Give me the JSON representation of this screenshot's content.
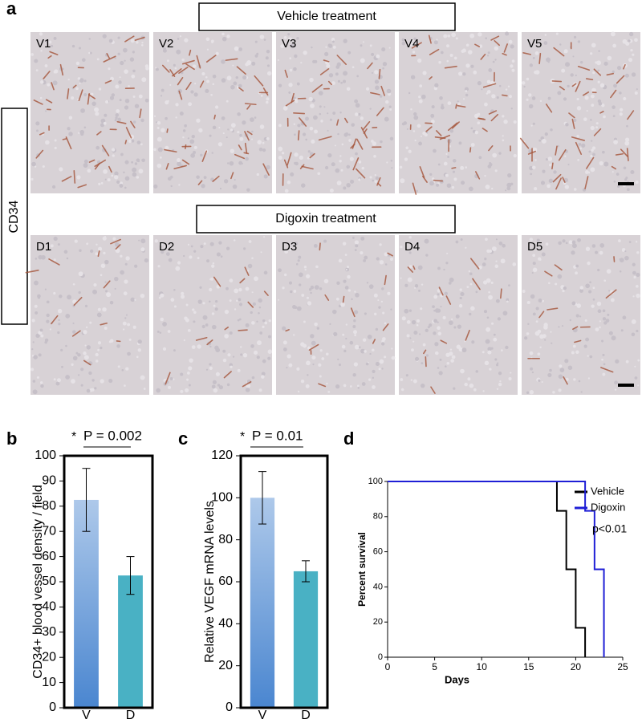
{
  "panel_a": {
    "label": "a",
    "vehicle_title": "Vehicle treatment",
    "digoxin_title": "Digoxin treatment",
    "stain": "CD34",
    "vehicle_images": [
      "V1",
      "V2",
      "V3",
      "V4",
      "V5"
    ],
    "digoxin_images": [
      "D1",
      "D2",
      "D3",
      "D4",
      "D5"
    ]
  },
  "chart_data": [
    {
      "type": "bar",
      "label": "b",
      "ylabel": "CD34+ blood vessel density / field",
      "annotation": "*",
      "p_value": "P = 0.002",
      "categories": [
        "V",
        "D"
      ],
      "values": [
        82.5,
        52.5
      ],
      "errors": [
        12.5,
        7.5
      ],
      "colors": [
        "#4a86d0",
        "#49b1c4"
      ],
      "ylim": [
        0,
        100
      ],
      "yticks": [
        0,
        10,
        20,
        30,
        40,
        50,
        60,
        70,
        80,
        90,
        100
      ]
    },
    {
      "type": "bar",
      "label": "c",
      "ylabel": "Relative VEGF mRNA levels",
      "annotation": "*",
      "p_value": "P = 0.01",
      "categories": [
        "V",
        "D"
      ],
      "values": [
        100,
        65
      ],
      "errors": [
        12.5,
        5
      ],
      "colors": [
        "#4a86d0",
        "#49b1c4"
      ],
      "ylim": [
        0,
        120
      ],
      "yticks": [
        0,
        20,
        40,
        60,
        80,
        100,
        120
      ]
    },
    {
      "type": "step",
      "label": "d",
      "xlabel": "Days",
      "ylabel": "Percent survival",
      "annotation": "p<0.01",
      "legend": "upper right",
      "series": [
        {
          "name": "Vehicle",
          "color": "#000000",
          "x": [
            0,
            18,
            19,
            20,
            21
          ],
          "values": [
            100,
            83.3,
            50,
            16.7,
            0
          ]
        },
        {
          "name": "Digoxin",
          "color": "#1f1fd6",
          "x": [
            0,
            21,
            22,
            23
          ],
          "values": [
            100,
            83.3,
            50,
            0
          ]
        }
      ],
      "xlim": [
        0,
        25
      ],
      "ylim": [
        0,
        100
      ],
      "xticks": [
        0,
        5,
        10,
        15,
        20,
        25
      ],
      "yticks": [
        0,
        20,
        40,
        60,
        80,
        100
      ]
    }
  ]
}
